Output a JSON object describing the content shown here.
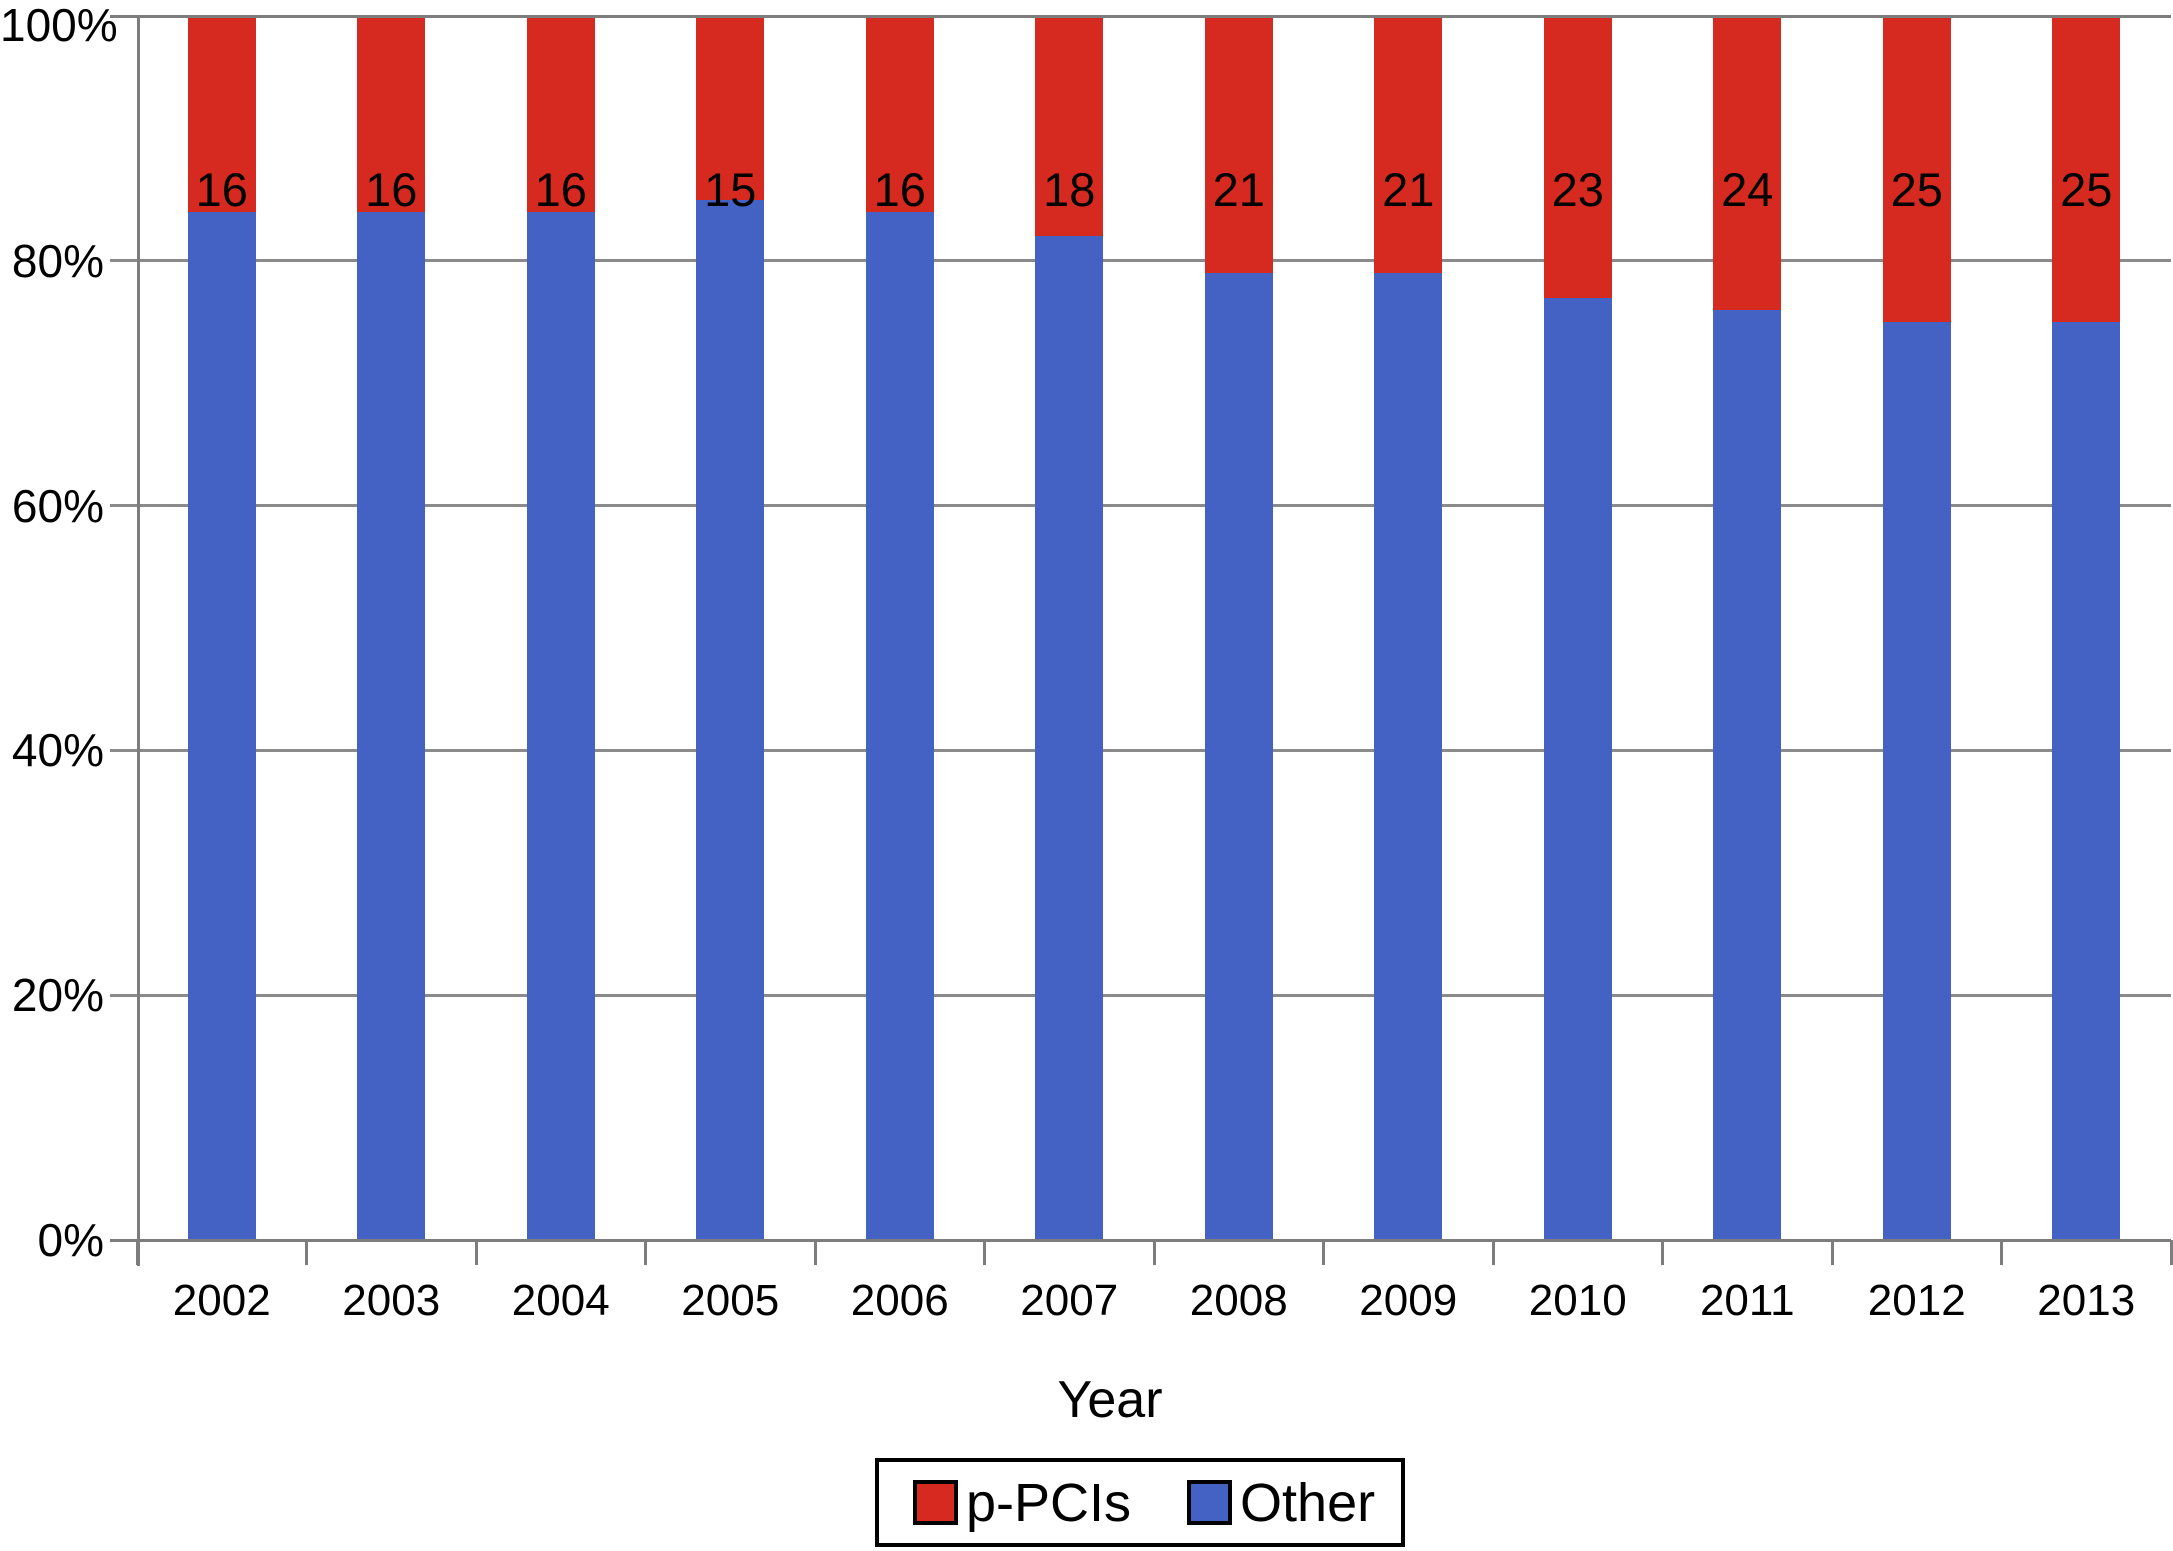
{
  "chart_data": {
    "type": "bar",
    "stacked": true,
    "title": "",
    "xlabel": "Year",
    "ylabel": "",
    "categories": [
      "2002",
      "2003",
      "2004",
      "2005",
      "2006",
      "2007",
      "2008",
      "2009",
      "2010",
      "2011",
      "2012",
      "2013"
    ],
    "series": [
      {
        "name": "p-PCIs",
        "color": "#d62920",
        "stack_position": "top",
        "values": [
          16,
          16,
          16,
          15,
          16,
          18,
          21,
          21,
          23,
          24,
          25,
          25
        ]
      },
      {
        "name": "Other",
        "color": "#4461c4",
        "stack_position": "bottom",
        "values": [
          84,
          84,
          84,
          85,
          84,
          82,
          79,
          79,
          77,
          76,
          75,
          75
        ]
      }
    ],
    "data_labels": {
      "series": "p-PCIs",
      "values": [
        "16",
        "16",
        "16",
        "15",
        "16",
        "18",
        "21",
        "21",
        "23",
        "24",
        "25",
        "25"
      ]
    },
    "y_ticks": [
      "100%",
      "80%",
      "60%",
      "40%",
      "20%",
      "0%"
    ],
    "ylim": [
      0,
      100
    ],
    "unit": "%",
    "grid": true,
    "legend": {
      "position": "bottom",
      "entries": [
        "p-PCIs",
        "Other"
      ]
    },
    "colors": {
      "grid": "#8a8a8a",
      "axis": "#7d7d7d",
      "text": "#000000",
      "background": "#ffffff"
    }
  }
}
